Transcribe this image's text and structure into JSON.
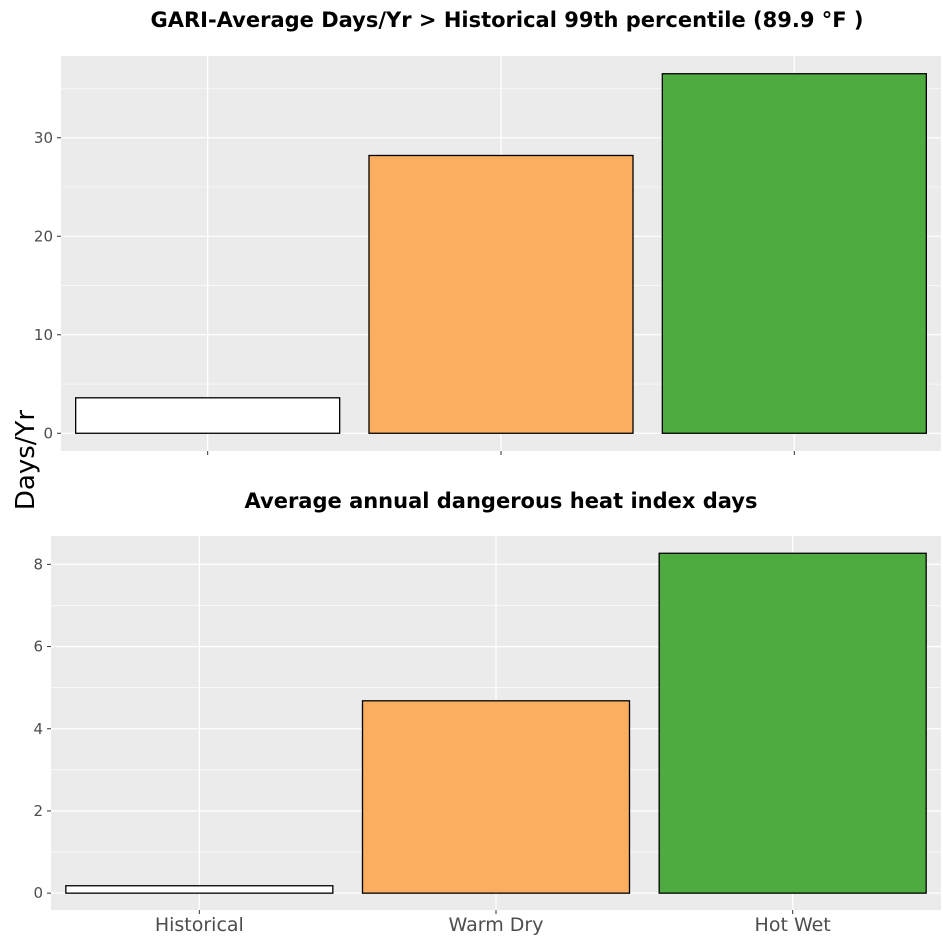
{
  "ylabel": "Days/Yr",
  "chart_data": [
    {
      "type": "bar",
      "title": "GARI-Average Days/Yr > Historical 99th percentile (89.9 °F )",
      "categories": [
        "Historical",
        "Warm Dry",
        "Hot Wet"
      ],
      "show_category_labels": false,
      "values": [
        3.6,
        28.2,
        36.5
      ],
      "ylim": [
        -1.8,
        38.3
      ],
      "yticks": [
        0,
        10,
        20,
        30
      ],
      "grid": true,
      "bar_colors": [
        "#ffffff",
        "#fcae60",
        "#4dab3f"
      ]
    },
    {
      "type": "bar",
      "title": "Average annual dangerous heat index days",
      "categories": [
        "Historical",
        "Warm Dry",
        "Hot Wet"
      ],
      "show_category_labels": true,
      "values": [
        0.18,
        4.68,
        8.27
      ],
      "ylim": [
        -0.41,
        8.69
      ],
      "yticks": [
        0,
        2,
        4,
        6,
        8
      ],
      "grid": true,
      "bar_colors": [
        "#ffffff",
        "#fcae60",
        "#4dab3f"
      ]
    }
  ],
  "colors": {
    "panel_background": "#ebebeb",
    "grid_major": "#ffffff",
    "bar_outline": "#000000"
  }
}
